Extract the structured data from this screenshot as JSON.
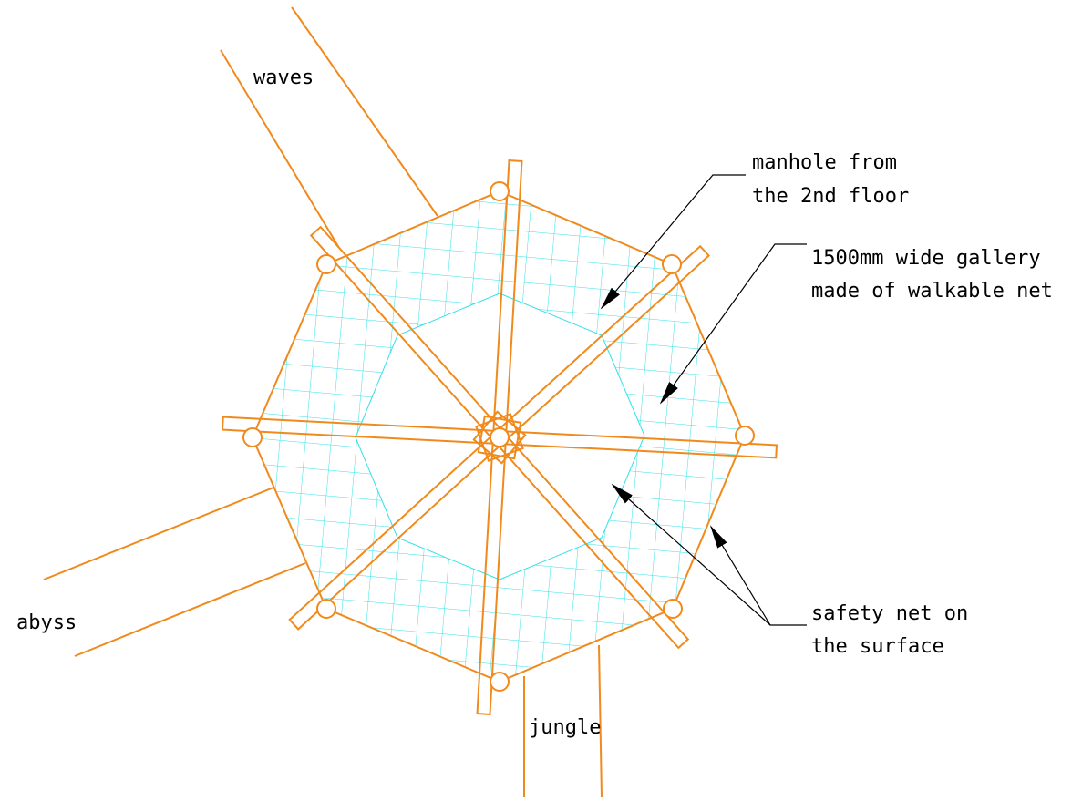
{
  "labels": {
    "waves": "waves",
    "abyss": "abyss",
    "jungle": "jungle",
    "manhole": [
      "manhole from",
      "the 2nd floor"
    ],
    "gallery": [
      "1500mm wide gallery",
      "made of walkable net"
    ],
    "safety_net": [
      "safety net on",
      "the surface"
    ]
  }
}
